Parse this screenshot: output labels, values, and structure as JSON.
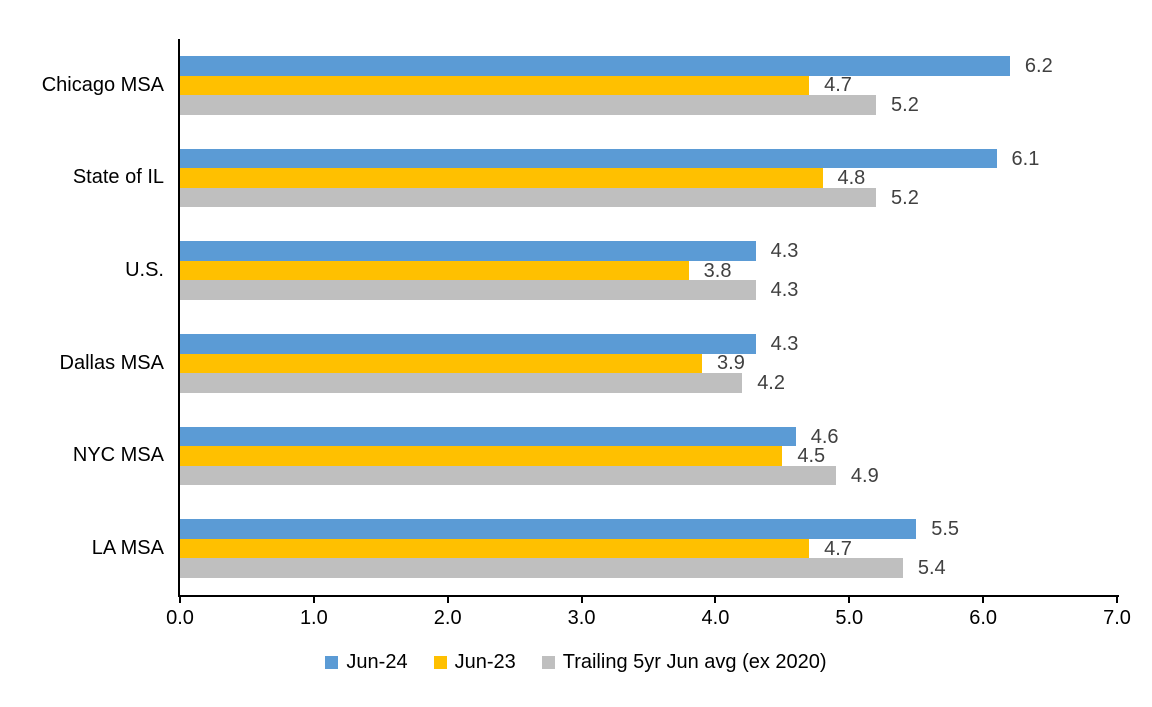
{
  "chart_data": {
    "type": "bar",
    "orientation": "horizontal",
    "title": "",
    "xlabel": "",
    "ylabel": "",
    "xlim": [
      0,
      7
    ],
    "x_ticks": [
      "0.0",
      "1.0",
      "2.0",
      "3.0",
      "4.0",
      "5.0",
      "6.0",
      "7.0"
    ],
    "grid": false,
    "legend_position": "bottom",
    "data_labels": true,
    "categories": [
      "Chicago MSA",
      "State of IL",
      "U.S.",
      "Dallas MSA",
      "NYC MSA",
      "LA MSA"
    ],
    "series": [
      {
        "name": "Jun-24",
        "color": "#5B9BD5",
        "values": [
          6.2,
          6.1,
          4.3,
          4.3,
          4.6,
          5.5
        ]
      },
      {
        "name": "Jun-23",
        "color": "#FFC000",
        "values": [
          4.7,
          4.8,
          3.8,
          3.9,
          4.5,
          4.7
        ]
      },
      {
        "name": "Trailing 5yr Jun avg (ex 2020)",
        "color": "#BFBFBF",
        "values": [
          5.2,
          5.2,
          4.3,
          4.2,
          4.9,
          5.4
        ]
      }
    ]
  },
  "colors": {
    "axis_line": "#000000",
    "data_label_text": "#404040",
    "category_text": "#000000",
    "tick_text": "#000000",
    "background": "#FFFFFF"
  }
}
